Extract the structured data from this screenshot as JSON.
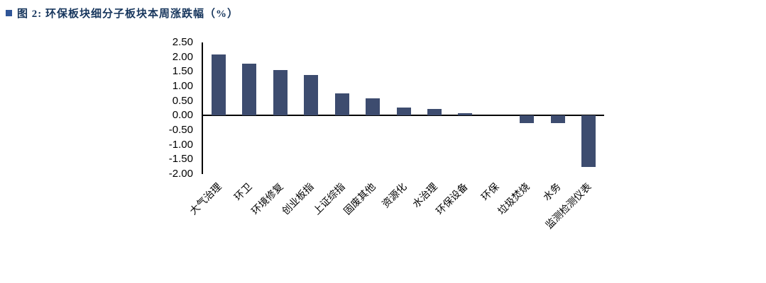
{
  "header": {
    "title": "图 2: 环保板块细分子板块本周涨跌幅（%）",
    "title_color": "#17365D",
    "marker_color": "#2F5597"
  },
  "chart_data": {
    "type": "bar",
    "title": "环保板块细分子板块本周涨跌幅（%）",
    "categories": [
      "大气治理",
      "环卫",
      "环境修复",
      "创业板指",
      "上证综指",
      "固废其他",
      "资源化",
      "水治理",
      "环保设备",
      "环保",
      "垃圾焚烧",
      "水务",
      "监测检测仪表"
    ],
    "values": [
      2.1,
      1.78,
      1.55,
      1.38,
      0.75,
      0.6,
      0.28,
      0.23,
      0.08,
      0.0,
      -0.25,
      -0.25,
      -1.75
    ],
    "xlabel": "",
    "ylabel": "",
    "ylim": [
      -2.0,
      2.5
    ],
    "ytick_step": 0.5,
    "grid": false,
    "legend": "none",
    "bar_color": "#3D4C6F",
    "axis_color": "#000000"
  }
}
